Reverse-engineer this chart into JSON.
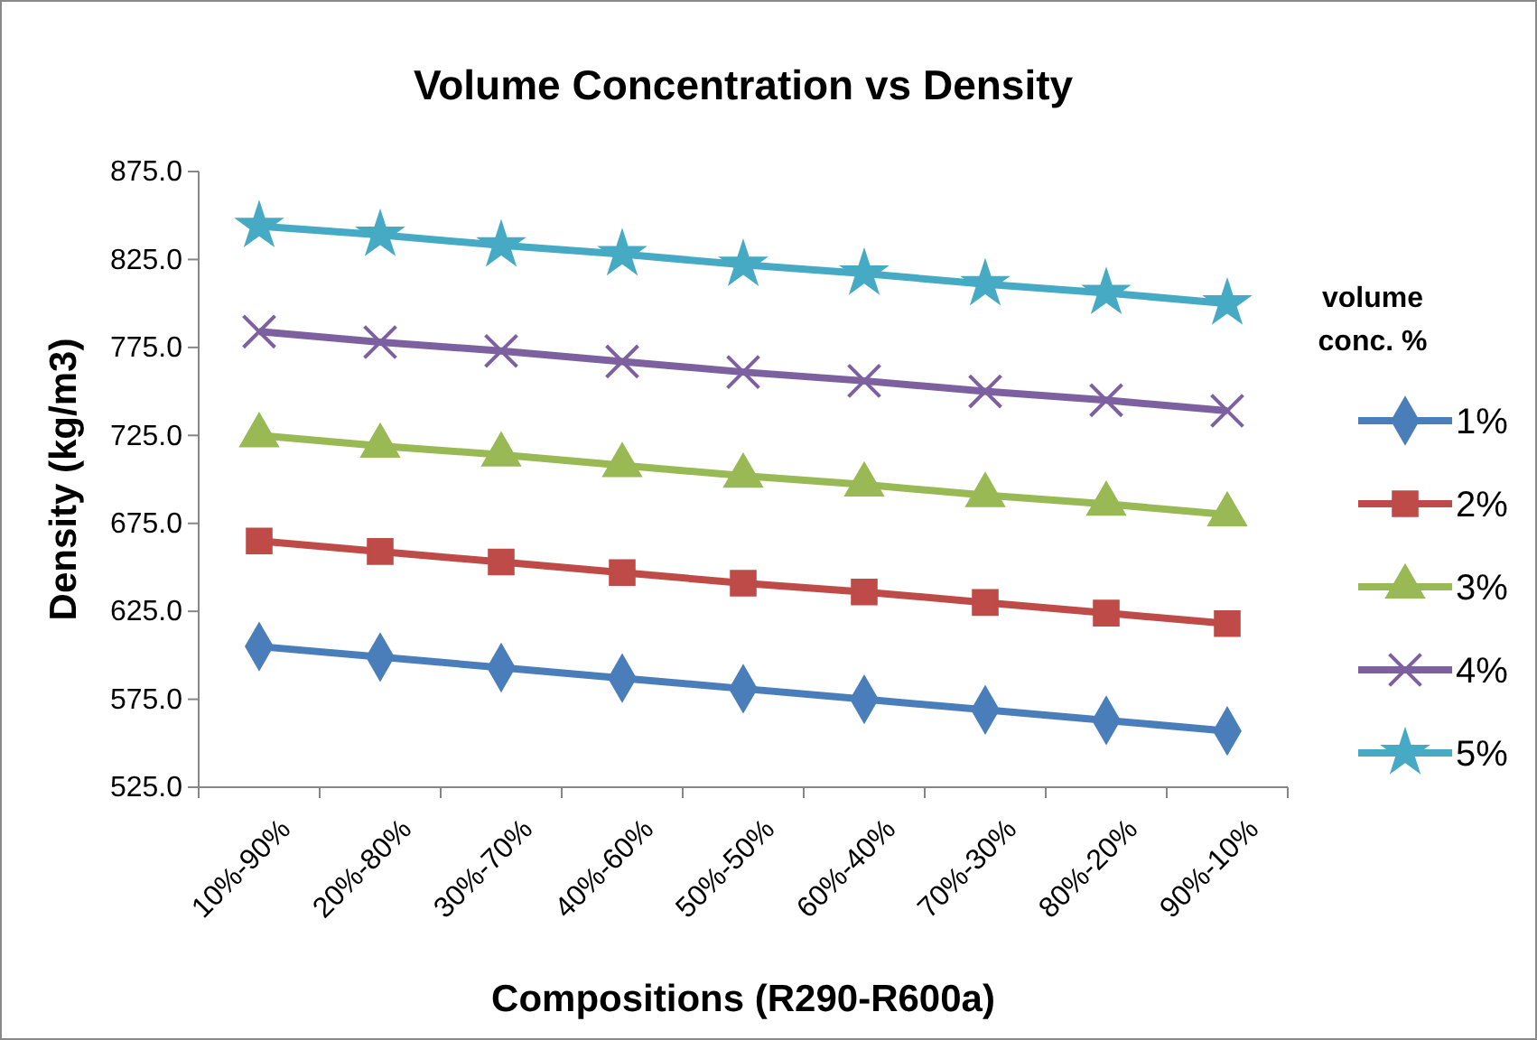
{
  "chart_data": {
    "type": "line",
    "title": "Volume Concentration vs Density",
    "xlabel": "Compositions (R290-R600a)",
    "ylabel": "Density (kg/m3)",
    "legend_title": "volume conc. %",
    "legend": "right",
    "categories": [
      "10%-90%",
      "20%-80%",
      "30%-70%",
      "40%-60%",
      "50%-50%",
      "60%-40%",
      "70%-30%",
      "80%-20%",
      "90%-10%"
    ],
    "ylim": [
      525,
      875
    ],
    "yticks": [
      {
        "value": 525,
        "label": "525.0"
      },
      {
        "value": 575,
        "label": "575.0"
      },
      {
        "value": 625,
        "label": "625.0"
      },
      {
        "value": 675,
        "label": "675.0"
      },
      {
        "value": 725,
        "label": "725.0"
      },
      {
        "value": 775,
        "label": "775.0"
      },
      {
        "value": 825,
        "label": "825.0"
      },
      {
        "value": 875,
        "label": "875.0"
      }
    ],
    "grid": false,
    "series": [
      {
        "name": "1%",
        "color": "#4a7ebb",
        "marker": "diamond",
        "values": [
          605,
          599,
          593,
          587,
          581,
          575,
          569,
          563,
          557
        ]
      },
      {
        "name": "2%",
        "color": "#be4b48",
        "marker": "square",
        "values": [
          665,
          659,
          653,
          647,
          641,
          636,
          630,
          624,
          618
        ]
      },
      {
        "name": "3%",
        "color": "#98b954",
        "marker": "triangle",
        "values": [
          725,
          719,
          714,
          708,
          702,
          697,
          691,
          686,
          680
        ]
      },
      {
        "name": "4%",
        "color": "#7d60a0",
        "marker": "cross",
        "values": [
          784,
          778,
          773,
          767,
          761,
          756,
          750,
          745,
          739
        ]
      },
      {
        "name": "5%",
        "color": "#46aac5",
        "marker": "star",
        "values": [
          844,
          839,
          833,
          828,
          822,
          817,
          811,
          806,
          800
        ]
      }
    ]
  }
}
